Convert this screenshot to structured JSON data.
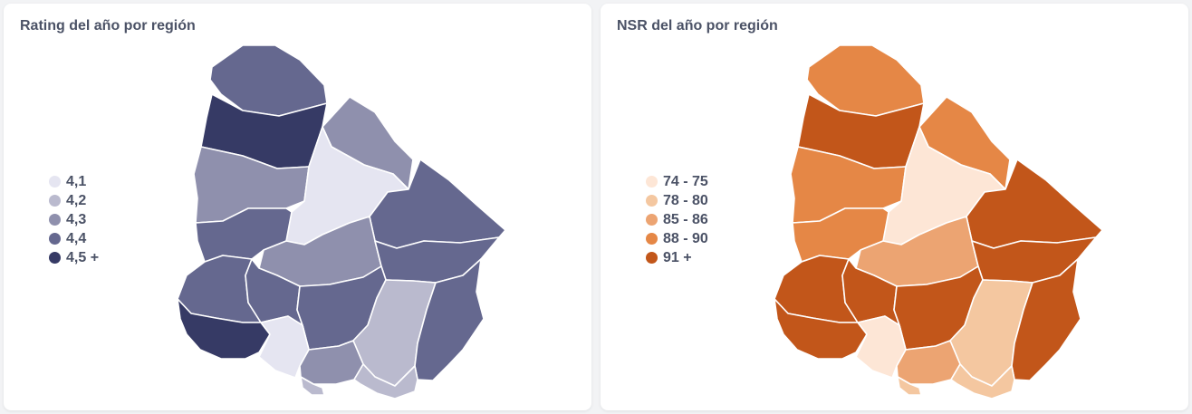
{
  "maps": [
    {
      "title": "Rating del año por región",
      "legend": [
        {
          "label": "4,1",
          "color": "#e5e5f1"
        },
        {
          "label": "4,2",
          "color": "#babace"
        },
        {
          "label": "4,3",
          "color": "#8f90ad"
        },
        {
          "label": "4,4",
          "color": "#65688f"
        },
        {
          "label": "4,5 +",
          "color": "#363a65"
        }
      ],
      "regions": [
        {
          "name": "artigas",
          "bin": 3
        },
        {
          "name": "salto",
          "bin": 4
        },
        {
          "name": "rivera",
          "bin": 2
        },
        {
          "name": "paysandu",
          "bin": 2
        },
        {
          "name": "tacuarembo",
          "bin": 0
        },
        {
          "name": "cerro-largo",
          "bin": 3
        },
        {
          "name": "rio-negro",
          "bin": 3
        },
        {
          "name": "durazno",
          "bin": 2
        },
        {
          "name": "treinta-y-tres",
          "bin": 3
        },
        {
          "name": "soriano",
          "bin": 3
        },
        {
          "name": "flores",
          "bin": 3
        },
        {
          "name": "florida",
          "bin": 3
        },
        {
          "name": "lavalleja",
          "bin": 1
        },
        {
          "name": "rocha",
          "bin": 3
        },
        {
          "name": "colonia",
          "bin": 4
        },
        {
          "name": "san-jose",
          "bin": 0
        },
        {
          "name": "canelones",
          "bin": 2
        },
        {
          "name": "maldonado",
          "bin": 1
        },
        {
          "name": "montevideo",
          "bin": 1
        }
      ]
    },
    {
      "title": "NSR del año por región",
      "legend": [
        {
          "label": "74 - 75",
          "color": "#fde6d6"
        },
        {
          "label": "78 - 80",
          "color": "#f4c7a0"
        },
        {
          "label": "85 - 86",
          "color": "#eca472"
        },
        {
          "label": "88 - 90",
          "color": "#e58746"
        },
        {
          "label": "91 +",
          "color": "#c2561a"
        }
      ],
      "regions": [
        {
          "name": "artigas",
          "bin": 3
        },
        {
          "name": "salto",
          "bin": 4
        },
        {
          "name": "rivera",
          "bin": 3
        },
        {
          "name": "paysandu",
          "bin": 3
        },
        {
          "name": "tacuarembo",
          "bin": 0
        },
        {
          "name": "cerro-largo",
          "bin": 4
        },
        {
          "name": "rio-negro",
          "bin": 3
        },
        {
          "name": "durazno",
          "bin": 2
        },
        {
          "name": "treinta-y-tres",
          "bin": 4
        },
        {
          "name": "soriano",
          "bin": 4
        },
        {
          "name": "flores",
          "bin": 4
        },
        {
          "name": "florida",
          "bin": 4
        },
        {
          "name": "lavalleja",
          "bin": 1
        },
        {
          "name": "rocha",
          "bin": 4
        },
        {
          "name": "colonia",
          "bin": 4
        },
        {
          "name": "san-jose",
          "bin": 0
        },
        {
          "name": "canelones",
          "bin": 2
        },
        {
          "name": "maldonado",
          "bin": 1
        },
        {
          "name": "montevideo",
          "bin": 1
        }
      ]
    }
  ]
}
